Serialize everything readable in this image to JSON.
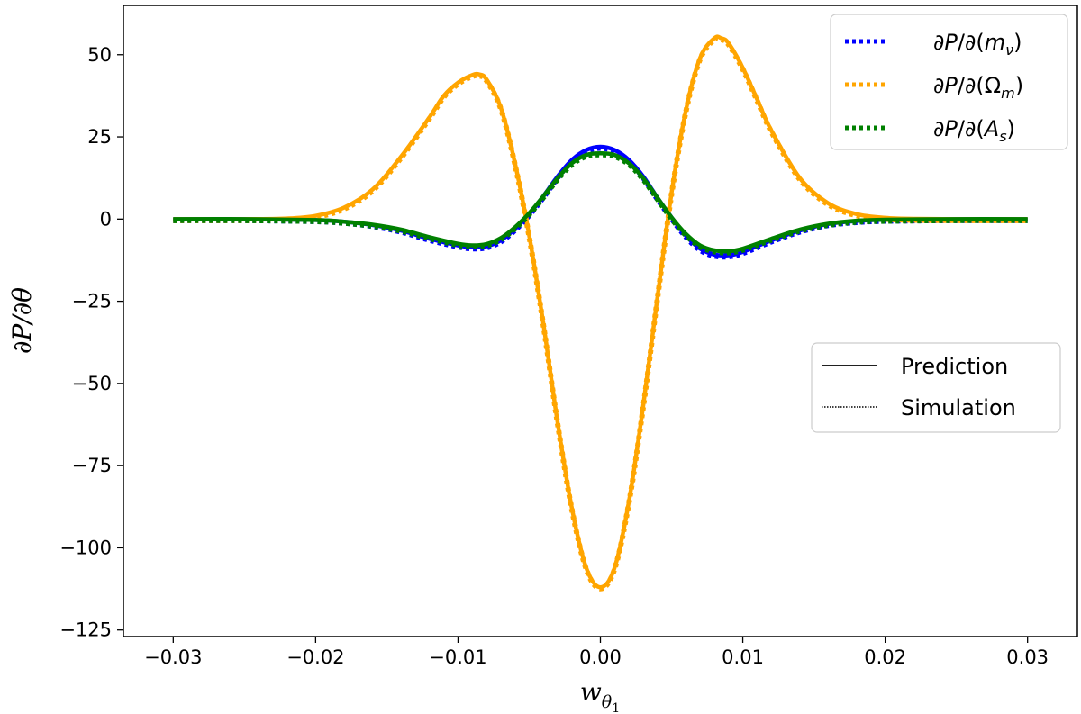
{
  "chart_data": {
    "type": "line",
    "xlabel": "wθ1",
    "ylabel": "∂P/∂θ",
    "xlim": [
      -0.0335,
      0.0335
    ],
    "ylim": [
      -127,
      65
    ],
    "xticks": [
      -0.03,
      -0.02,
      -0.01,
      0.0,
      0.01,
      0.02,
      0.03
    ],
    "xtick_labels": [
      "−0.03",
      "−0.02",
      "−0.01",
      "0.00",
      "0.01",
      "0.02",
      "0.03"
    ],
    "yticks": [
      50,
      25,
      0,
      -25,
      -50,
      -75,
      -100,
      -125
    ],
    "ytick_labels": [
      "50",
      "25",
      "0",
      "−25",
      "−50",
      "−75",
      "−100",
      "−125"
    ],
    "grid": false,
    "series": [
      {
        "name": "∂P/∂(mν)",
        "color": "#0000ff",
        "x": [
          -0.03,
          -0.025,
          -0.02,
          -0.018,
          -0.016,
          -0.014,
          -0.012,
          -0.01,
          -0.009,
          -0.008,
          -0.007,
          -0.006,
          -0.005,
          -0.004,
          -0.003,
          -0.002,
          -0.001,
          0.0,
          0.001,
          0.002,
          0.003,
          0.004,
          0.005,
          0.006,
          0.007,
          0.008,
          0.009,
          0.01,
          0.012,
          0.014,
          0.016,
          0.018,
          0.02,
          0.025,
          0.03
        ],
        "y": [
          0,
          0,
          -0.3,
          -0.8,
          -1.8,
          -3.5,
          -6.0,
          -8.0,
          -8.6,
          -8.3,
          -6.5,
          -3.0,
          1.5,
          7.0,
          13.0,
          18.0,
          21.0,
          22.0,
          21.0,
          18.0,
          13.0,
          6.5,
          0.5,
          -5.0,
          -9.0,
          -10.8,
          -11.0,
          -10.0,
          -6.5,
          -3.5,
          -1.5,
          -0.6,
          -0.2,
          0,
          0
        ]
      },
      {
        "name": "∂P/∂(Ωm)",
        "color": "#ffa500",
        "x": [
          -0.03,
          -0.025,
          -0.022,
          -0.02,
          -0.018,
          -0.016,
          -0.014,
          -0.012,
          -0.011,
          -0.01,
          -0.009,
          -0.0085,
          -0.008,
          -0.007,
          -0.006,
          -0.005,
          -0.004,
          -0.003,
          -0.002,
          -0.001,
          0.0,
          0.001,
          0.002,
          0.003,
          0.004,
          0.005,
          0.006,
          0.007,
          0.008,
          0.0085,
          0.009,
          0.01,
          0.011,
          0.012,
          0.014,
          0.016,
          0.018,
          0.02,
          0.022,
          0.025,
          0.03
        ],
        "y": [
          0,
          0,
          0.2,
          1.0,
          3.5,
          9.0,
          19.0,
          31.0,
          37.5,
          41.5,
          43.8,
          44.0,
          42.5,
          34.0,
          17.0,
          -5.0,
          -32.0,
          -62.0,
          -88.0,
          -106.0,
          -112.0,
          -106.0,
          -86.0,
          -57.0,
          -24.0,
          8.0,
          33.0,
          49.0,
          55.0,
          55.0,
          53.5,
          46.0,
          36.5,
          27.0,
          12.5,
          4.8,
          1.5,
          0.4,
          0.1,
          0,
          0
        ]
      },
      {
        "name": "∂P/∂(As)",
        "color": "#008000",
        "x": [
          -0.03,
          -0.025,
          -0.02,
          -0.018,
          -0.016,
          -0.014,
          -0.012,
          -0.01,
          -0.009,
          -0.008,
          -0.007,
          -0.006,
          -0.005,
          -0.004,
          -0.003,
          -0.002,
          -0.001,
          0.0,
          0.001,
          0.002,
          0.003,
          0.004,
          0.005,
          0.006,
          0.007,
          0.008,
          0.009,
          0.01,
          0.012,
          0.014,
          0.016,
          0.018,
          0.02,
          0.025,
          0.03
        ],
        "y": [
          0,
          0,
          -0.3,
          -0.8,
          -1.7,
          -3.2,
          -5.5,
          -7.5,
          -8.0,
          -7.6,
          -5.8,
          -2.5,
          1.8,
          7.0,
          12.5,
          17.0,
          19.5,
          20.0,
          19.5,
          17.0,
          12.5,
          6.5,
          0.5,
          -4.5,
          -8.0,
          -9.5,
          -9.8,
          -9.0,
          -6.0,
          -3.2,
          -1.4,
          -0.5,
          -0.2,
          0,
          0
        ]
      }
    ],
    "legend_series": {
      "placement": "top-right",
      "entries": [
        "∂P/∂(mν)",
        "∂P/∂(Ωm)",
        "∂P/∂(As)"
      ]
    },
    "legend_styles": {
      "placement": "center-right",
      "entries": [
        {
          "label": "Prediction",
          "style": "solid"
        },
        {
          "label": "Simulation",
          "style": "dotted"
        }
      ]
    }
  }
}
